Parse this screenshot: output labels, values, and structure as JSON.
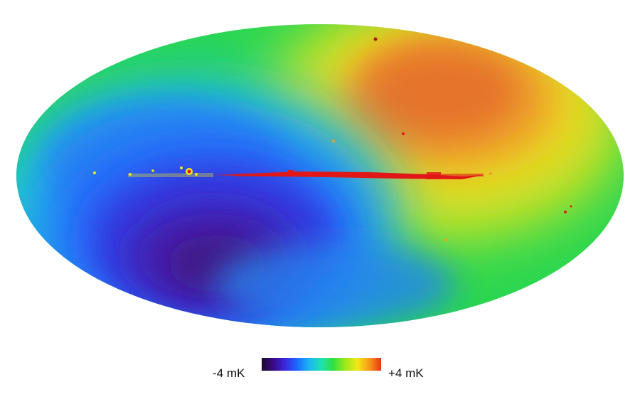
{
  "colorbar": {
    "min_label": "-4 mK",
    "max_label": "+4 mK",
    "colors": [
      "#1a0a2a",
      "#3a0a8a",
      "#3a2ae0",
      "#1a6cff",
      "#1ab8f0",
      "#1ee0b0",
      "#30e040",
      "#9ee81a",
      "#f0e818",
      "#f89a1a",
      "#e8321a"
    ]
  },
  "map": {
    "background": "#ffffff",
    "colors": {
      "cold": "#3010b0",
      "cold_mid": "#2050ff",
      "neutral": "#20d040",
      "warm": "#e8c020",
      "hot": "#e06020",
      "galactic_plane": "#e01818"
    }
  }
}
